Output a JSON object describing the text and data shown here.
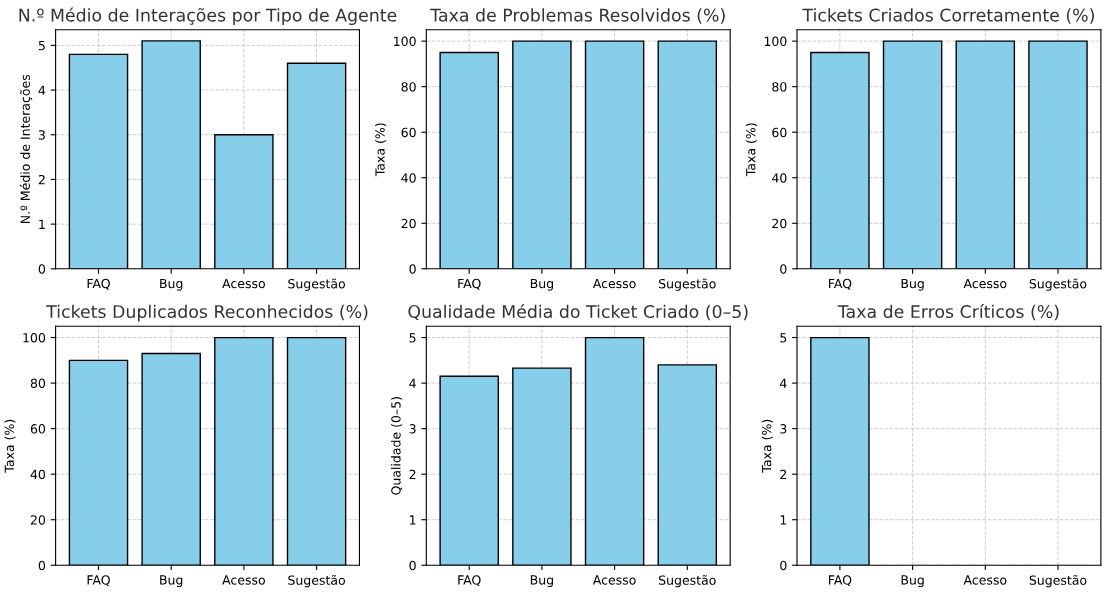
{
  "chart_data": [
    {
      "type": "bar",
      "title": "N.º Médio de Interações por Tipo de Agente",
      "ylabel": "N.º Médio de Interações",
      "categories": [
        "FAQ",
        "Bug",
        "Acesso",
        "Sugestão"
      ],
      "values": [
        4.8,
        5.1,
        3.0,
        4.6
      ],
      "color": "#87ceeb",
      "ylim": [
        0,
        5.35
      ],
      "yticks": [
        0,
        1,
        2,
        3,
        4,
        5
      ],
      "grid": true
    },
    {
      "type": "bar",
      "title": "Taxa de Problemas Resolvidos (%)",
      "ylabel": "Taxa (%)",
      "categories": [
        "FAQ",
        "Bug",
        "Acesso",
        "Sugestão"
      ],
      "values": [
        95,
        100,
        100,
        100
      ],
      "color": "#87ceeb",
      "ylim": [
        0,
        105
      ],
      "yticks": [
        0,
        20,
        40,
        60,
        80,
        100
      ],
      "grid": true
    },
    {
      "type": "bar",
      "title": "Tickets Criados Corretamente (%)",
      "ylabel": "Taxa (%)",
      "categories": [
        "FAQ",
        "Bug",
        "Acesso",
        "Sugestão"
      ],
      "values": [
        95,
        100,
        100,
        100
      ],
      "color": "#87ceeb",
      "ylim": [
        0,
        105
      ],
      "yticks": [
        0,
        20,
        40,
        60,
        80,
        100
      ],
      "grid": true
    },
    {
      "type": "bar",
      "title": "Tickets Duplicados Reconhecidos (%)",
      "ylabel": "Taxa (%)",
      "categories": [
        "FAQ",
        "Bug",
        "Acesso",
        "Sugestão"
      ],
      "values": [
        90,
        93,
        100,
        100
      ],
      "color": "#87ceeb",
      "ylim": [
        0,
        105
      ],
      "yticks": [
        0,
        20,
        40,
        60,
        80,
        100
      ],
      "grid": true
    },
    {
      "type": "bar",
      "title": "Qualidade Média do Ticket Criado (0–5)",
      "ylabel": "Qualidade (0–5)",
      "categories": [
        "FAQ",
        "Bug",
        "Acesso",
        "Sugestão"
      ],
      "values": [
        4.15,
        4.33,
        5.0,
        4.4
      ],
      "color": "#87ceeb",
      "ylim": [
        0,
        5.25
      ],
      "yticks": [
        0,
        1,
        2,
        3,
        4,
        5
      ],
      "grid": true
    },
    {
      "type": "bar",
      "title": "Taxa de Erros Críticos (%)",
      "ylabel": "Taxa (%)",
      "categories": [
        "FAQ",
        "Bug",
        "Acesso",
        "Sugestão"
      ],
      "values": [
        5,
        0,
        0,
        0
      ],
      "color": "#87ceeb",
      "ylim": [
        0,
        5.25
      ],
      "yticks": [
        0,
        1,
        2,
        3,
        4,
        5
      ],
      "grid": true
    }
  ]
}
